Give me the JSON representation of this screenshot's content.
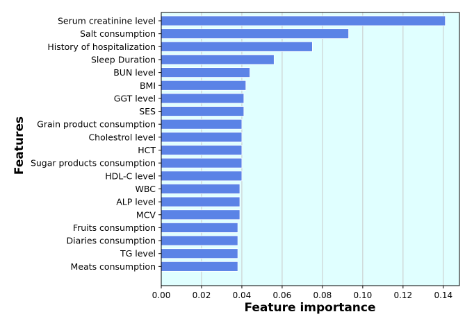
{
  "chart_data": {
    "type": "bar",
    "orientation": "horizontal",
    "title": "",
    "xlabel": "Feature importance",
    "ylabel": "Features",
    "xlim": [
      0.0,
      0.148
    ],
    "xticks": [
      0.0,
      0.02,
      0.04,
      0.06,
      0.08,
      0.1,
      0.12,
      0.14
    ],
    "xtick_labels": [
      "0.00",
      "0.02",
      "0.04",
      "0.06",
      "0.08",
      "0.10",
      "0.12",
      "0.14"
    ],
    "grid": true,
    "categories": [
      "Serum creatinine level",
      "Salt consumption",
      "History of hospitalization",
      "Sleep Duration",
      "BUN level",
      "BMI",
      "GGT level",
      "SES",
      "Grain product consumption",
      "Cholestrol level",
      "HCT",
      "Sugar products consumption",
      "HDL-C level",
      "WBC",
      "ALP level",
      "MCV",
      "Fruits consumption",
      "Diaries consumption",
      "TG level",
      "Meats consumption"
    ],
    "values": [
      0.141,
      0.093,
      0.075,
      0.056,
      0.044,
      0.042,
      0.041,
      0.041,
      0.04,
      0.04,
      0.04,
      0.04,
      0.04,
      0.039,
      0.039,
      0.039,
      0.038,
      0.038,
      0.038,
      0.038
    ]
  },
  "colors": {
    "bar_fill": "#5b83e6",
    "bar_edge": "#ffffff",
    "plot_background": "#e0ffff",
    "grid": "#c8c8c8",
    "axes": "#000000",
    "text": "#000000"
  }
}
